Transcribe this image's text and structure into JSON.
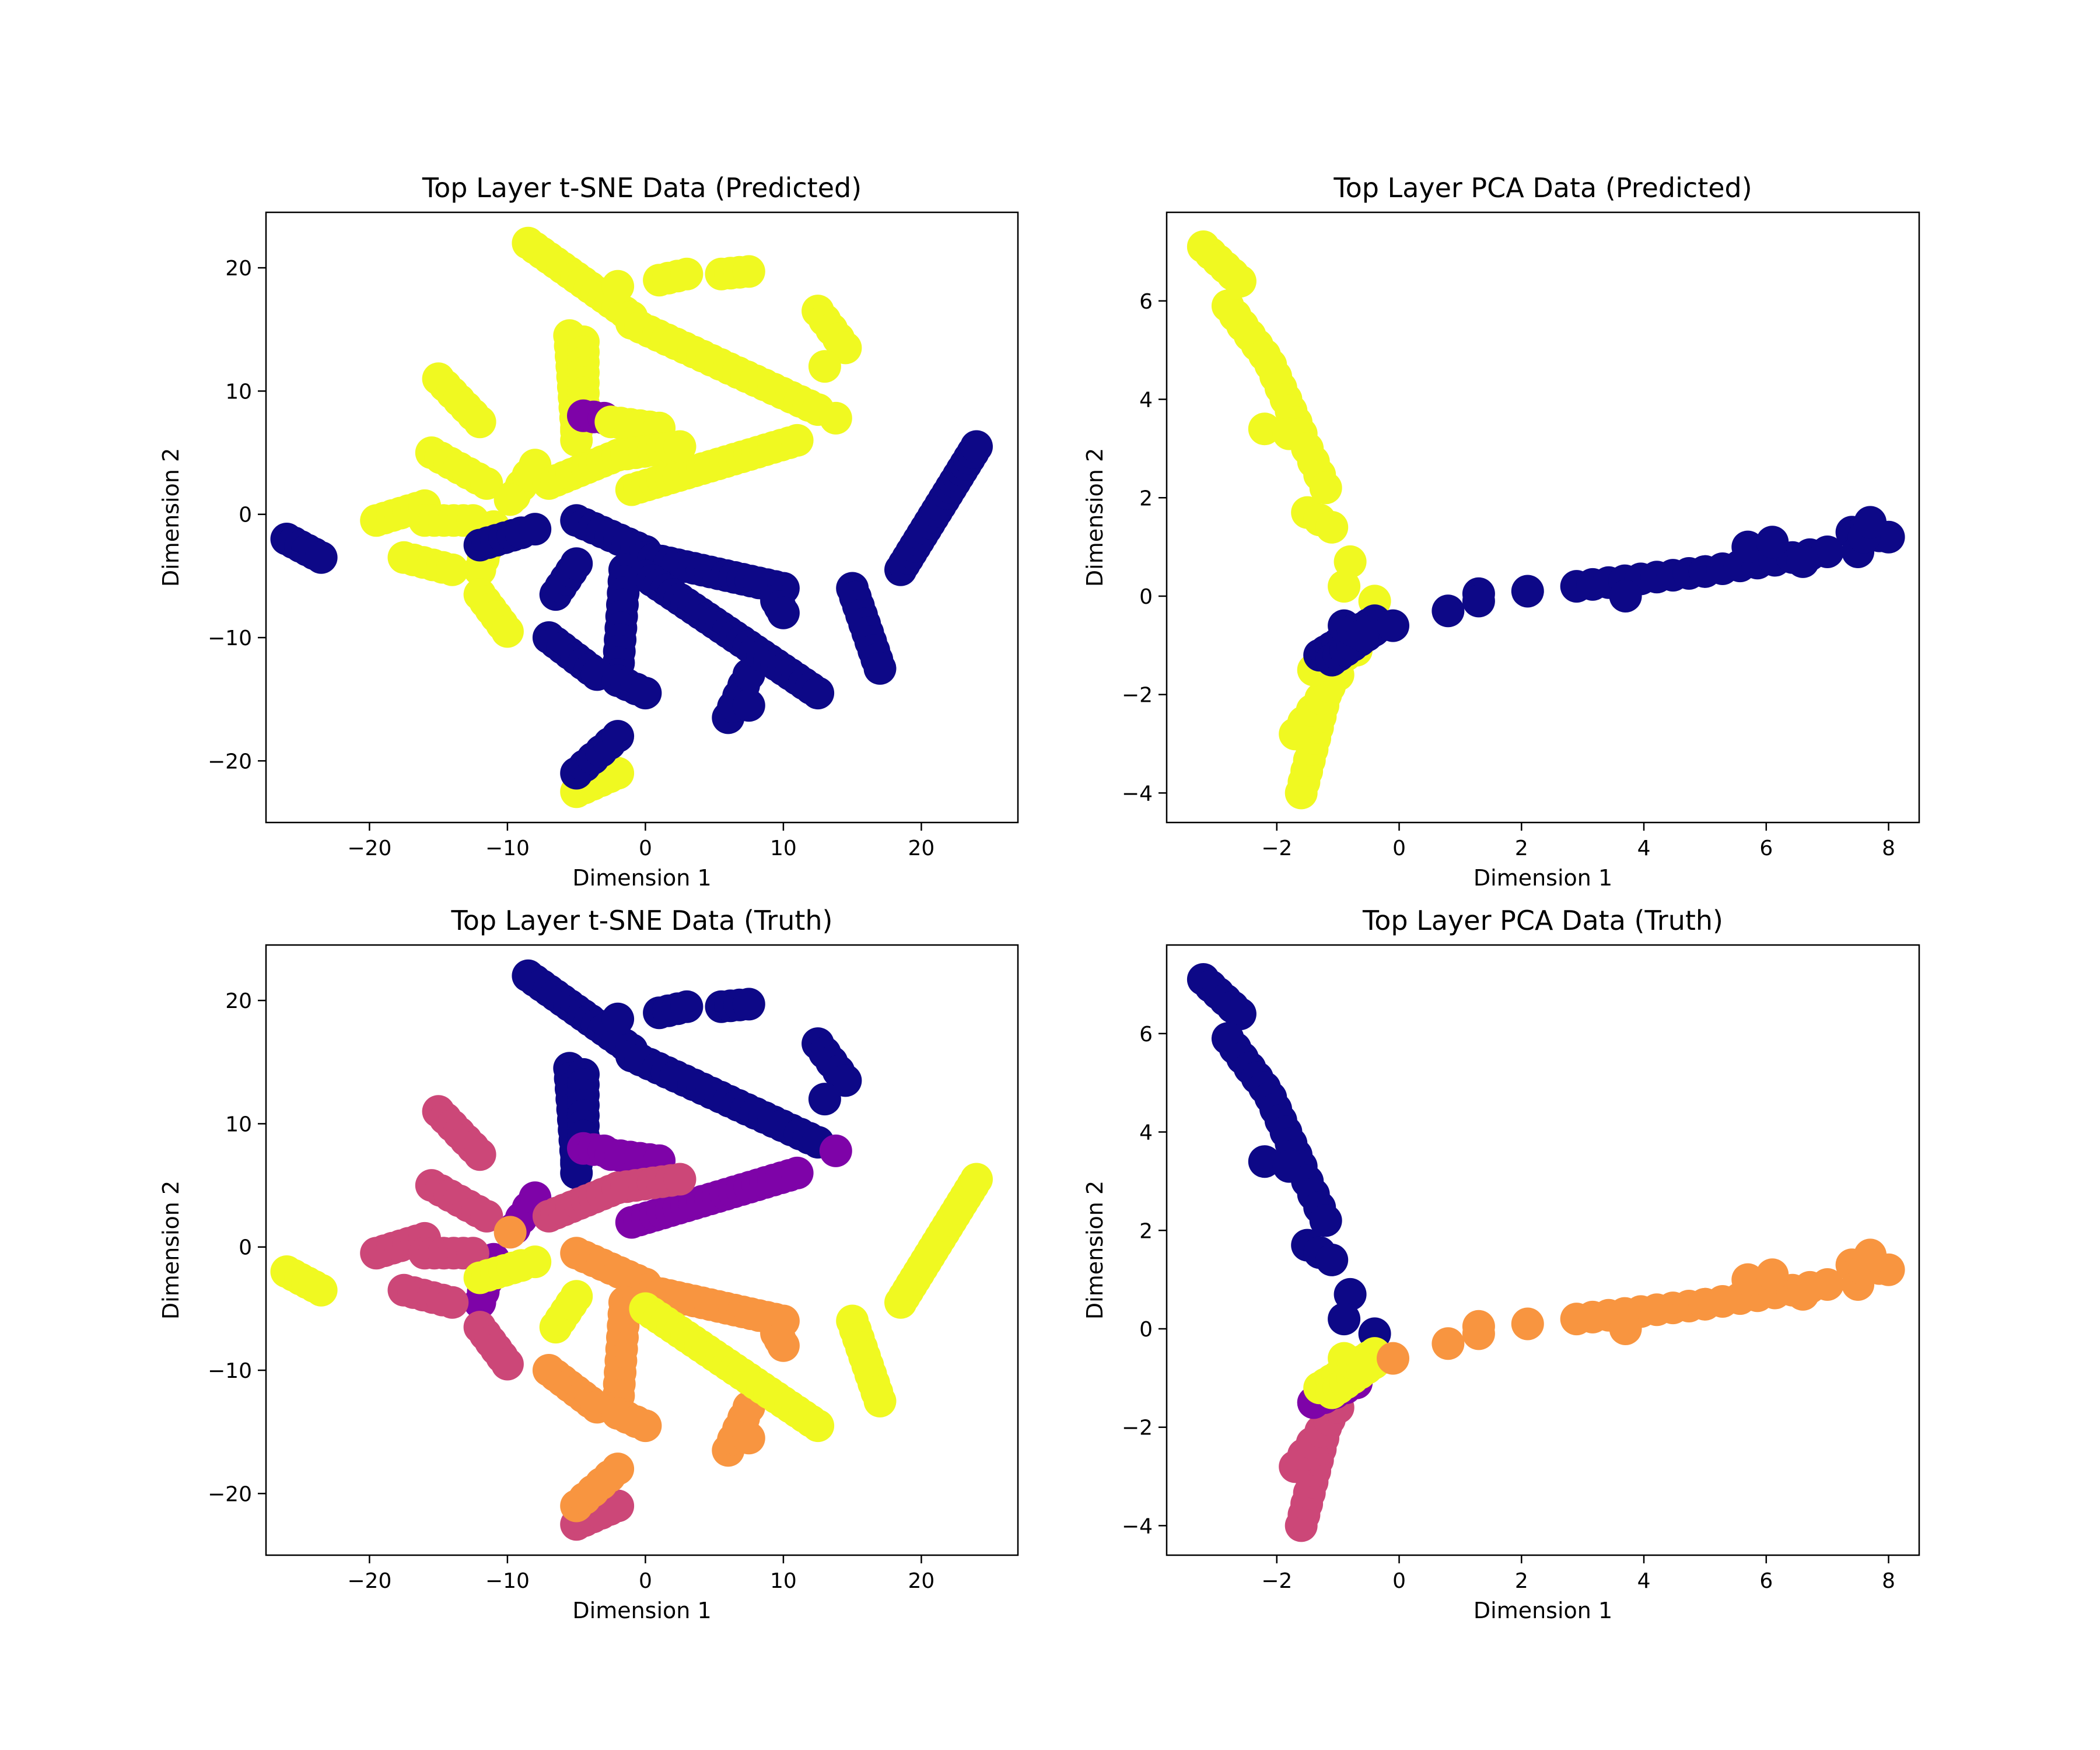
{
  "colors": {
    "class0": "#0d0887",
    "class1": "#7e03a8",
    "class2": "#cc4778",
    "class3": "#f89540",
    "class4": "#f0f921"
  },
  "chart_data": [
    {
      "type": "scatter",
      "title": "Top Layer t-SNE Data (Predicted)",
      "xlabel": "Dimension 1",
      "ylabel": "Dimension 2",
      "xlim": [
        -27.5,
        27
      ],
      "ylim": [
        -25,
        24.5
      ],
      "xticks": [
        -20,
        -10,
        0,
        10,
        20
      ],
      "yticks": [
        -20,
        -10,
        0,
        10,
        20
      ],
      "embedding": "tsne",
      "label_set": "pred"
    },
    {
      "type": "scatter",
      "title": "Top Layer PCA Data (Predicted)",
      "xlabel": "Dimension 1",
      "ylabel": "Dimension 2",
      "xlim": [
        -3.8,
        8.5
      ],
      "ylim": [
        -4.6,
        7.8
      ],
      "xticks": [
        -2,
        0,
        2,
        4,
        6,
        8
      ],
      "yticks": [
        -4,
        -2,
        0,
        2,
        4,
        6
      ],
      "embedding": "pca",
      "label_set": "pred"
    },
    {
      "type": "scatter",
      "title": "Top Layer t-SNE Data (Truth)",
      "xlabel": "Dimension 1",
      "ylabel": "Dimension 2",
      "xlim": [
        -27.5,
        27
      ],
      "ylim": [
        -25,
        24.5
      ],
      "xticks": [
        -20,
        -10,
        0,
        10,
        20
      ],
      "yticks": [
        -20,
        -10,
        0,
        10,
        20
      ],
      "embedding": "tsne",
      "label_set": "truth"
    },
    {
      "type": "scatter",
      "title": "Top Layer PCA Data (Truth)",
      "xlabel": "Dimension 1",
      "ylabel": "Dimension 2",
      "xlim": [
        -3.8,
        8.5
      ],
      "ylim": [
        -4.6,
        7.8
      ],
      "xticks": [
        -2,
        0,
        2,
        4,
        6,
        8
      ],
      "yticks": [
        -4,
        -2,
        0,
        2,
        4,
        6
      ],
      "embedding": "pca",
      "label_set": "truth"
    }
  ],
  "tsne_strands": [
    {
      "from": [
        -8.5,
        22
      ],
      "to": [
        -1,
        16
      ],
      "n": 16,
      "pred": 4,
      "truth": 0
    },
    {
      "from": [
        -2,
        18.5
      ],
      "to": [
        -2,
        18.5
      ],
      "n": 1,
      "pred": 4,
      "truth": 0
    },
    {
      "from": [
        1,
        19
      ],
      "to": [
        3,
        19.5
      ],
      "n": 4,
      "pred": 4,
      "truth": 0
    },
    {
      "from": [
        5.5,
        19.5
      ],
      "to": [
        7.5,
        19.7
      ],
      "n": 4,
      "pred": 4,
      "truth": 0
    },
    {
      "from": [
        -1,
        15.5
      ],
      "to": [
        12.5,
        8.5
      ],
      "n": 22,
      "pred": 4,
      "truth": 0
    },
    {
      "from": [
        12.5,
        16.5
      ],
      "to": [
        14.5,
        13.5
      ],
      "n": 5,
      "pred": 4,
      "truth": 0
    },
    {
      "from": [
        13,
        12
      ],
      "to": [
        13,
        12
      ],
      "n": 1,
      "pred": 4,
      "truth": 0
    },
    {
      "from": [
        -5.5,
        14.5
      ],
      "to": [
        -5,
        7
      ],
      "n": 10,
      "pred": 4,
      "truth": 0
    },
    {
      "from": [
        -4.5,
        14
      ],
      "to": [
        -4.5,
        9
      ],
      "n": 7,
      "pred": 4,
      "truth": 0
    },
    {
      "from": [
        -5,
        7.5
      ],
      "to": [
        -5,
        6
      ],
      "n": 3,
      "pred": 4,
      "truth": 0
    },
    {
      "from": [
        -4.5,
        8
      ],
      "to": [
        -3,
        7.8
      ],
      "n": 3,
      "pred": 1,
      "truth": 1
    },
    {
      "from": [
        -2.5,
        7.5
      ],
      "to": [
        1,
        7
      ],
      "n": 6,
      "pred": 4,
      "truth": 1
    },
    {
      "from": [
        -1,
        2
      ],
      "to": [
        11,
        6
      ],
      "n": 22,
      "pred": 4,
      "truth": 1
    },
    {
      "from": [
        13.8,
        7.8
      ],
      "to": [
        13.8,
        7.8
      ],
      "n": 1,
      "pred": 4,
      "truth": 1
    },
    {
      "from": [
        -9.5,
        1.5
      ],
      "to": [
        -8,
        4
      ],
      "n": 4,
      "pred": 4,
      "truth": 1
    },
    {
      "from": [
        -11,
        -1
      ],
      "to": [
        -12,
        -4.5
      ],
      "n": 5,
      "pred": 4,
      "truth": 1
    },
    {
      "from": [
        -7,
        2.5
      ],
      "to": [
        -2,
        4.8
      ],
      "n": 10,
      "pred": 4,
      "truth": 2
    },
    {
      "from": [
        -2,
        4.8
      ],
      "to": [
        2.5,
        5.5
      ],
      "n": 8,
      "pred": 4,
      "truth": 2
    },
    {
      "from": [
        -15,
        11
      ],
      "to": [
        -12,
        7.5
      ],
      "n": 7,
      "pred": 4,
      "truth": 2
    },
    {
      "from": [
        -15.5,
        5
      ],
      "to": [
        -11.5,
        2.5
      ],
      "n": 7,
      "pred": 4,
      "truth": 2
    },
    {
      "from": [
        -19.5,
        -0.5
      ],
      "to": [
        -16,
        0.7
      ],
      "n": 7,
      "pred": 4,
      "truth": 2
    },
    {
      "from": [
        -16,
        -0.5
      ],
      "to": [
        -12.5,
        -0.5
      ],
      "n": 6,
      "pred": 4,
      "truth": 2
    },
    {
      "from": [
        -17.5,
        -3.5
      ],
      "to": [
        -14,
        -4.5
      ],
      "n": 6,
      "pred": 4,
      "truth": 2
    },
    {
      "from": [
        -12,
        -6.5
      ],
      "to": [
        -10,
        -9.5
      ],
      "n": 6,
      "pred": 4,
      "truth": 2
    },
    {
      "from": [
        -5,
        -22.5
      ],
      "to": [
        -2,
        -21
      ],
      "n": 6,
      "pred": 4,
      "truth": 2
    },
    {
      "from": [
        -9.8,
        1.2
      ],
      "to": [
        -9.8,
        1.2
      ],
      "n": 1,
      "pred": 4,
      "truth": 3
    },
    {
      "from": [
        -5,
        -0.5
      ],
      "to": [
        0,
        -3
      ],
      "n": 9,
      "pred": 0,
      "truth": 3
    },
    {
      "from": [
        0,
        -3.5
      ],
      "to": [
        10,
        -6
      ],
      "n": 18,
      "pred": 0,
      "truth": 3
    },
    {
      "from": [
        9.5,
        -7
      ],
      "to": [
        10,
        -8
      ],
      "n": 3,
      "pred": 0,
      "truth": 3
    },
    {
      "from": [
        -1.5,
        -4.5
      ],
      "to": [
        -2,
        -13
      ],
      "n": 10,
      "pred": 0,
      "truth": 3
    },
    {
      "from": [
        -7,
        -10
      ],
      "to": [
        -3.5,
        -13
      ],
      "n": 8,
      "pred": 0,
      "truth": 3
    },
    {
      "from": [
        -2,
        -13.5
      ],
      "to": [
        0,
        -14.5
      ],
      "n": 4,
      "pred": 0,
      "truth": 3
    },
    {
      "from": [
        -5,
        -21
      ],
      "to": [
        -2,
        -18
      ],
      "n": 6,
      "pred": 0,
      "truth": 3
    },
    {
      "from": [
        6,
        -16.5
      ],
      "to": [
        7.5,
        -13
      ],
      "n": 5,
      "pred": 0,
      "truth": 3
    },
    {
      "from": [
        6.5,
        -15.5
      ],
      "to": [
        7.5,
        -15.5
      ],
      "n": 2,
      "pred": 0,
      "truth": 3
    },
    {
      "from": [
        -26,
        -2
      ],
      "to": [
        -23.5,
        -3.5
      ],
      "n": 6,
      "pred": 0,
      "truth": 4
    },
    {
      "from": [
        -12,
        -2.5
      ],
      "to": [
        -9,
        -1.5
      ],
      "n": 6,
      "pred": 0,
      "truth": 4
    },
    {
      "from": [
        -9,
        -1.5
      ],
      "to": [
        -8,
        -1.2
      ],
      "n": 2,
      "pred": 0,
      "truth": 4
    },
    {
      "from": [
        -6.5,
        -6.5
      ],
      "to": [
        -5,
        -4
      ],
      "n": 5,
      "pred": 0,
      "truth": 4
    },
    {
      "from": [
        0,
        -5
      ],
      "to": [
        12.5,
        -14.5
      ],
      "n": 26,
      "pred": 0,
      "truth": 4
    },
    {
      "from": [
        15,
        -6
      ],
      "to": [
        17,
        -12.5
      ],
      "n": 10,
      "pred": 0,
      "truth": 4
    },
    {
      "from": [
        18.5,
        -4.5
      ],
      "to": [
        24,
        5.5
      ],
      "n": 22,
      "pred": 0,
      "truth": 4
    }
  ],
  "pca_strands": [
    {
      "from": [
        -3.2,
        7.1
      ],
      "to": [
        -2.6,
        6.4
      ],
      "n": 6,
      "pred": 4,
      "truth": 0
    },
    {
      "from": [
        -2.8,
        5.9
      ],
      "to": [
        -2.2,
        4.9
      ],
      "n": 6,
      "pred": 4,
      "truth": 0
    },
    {
      "from": [
        -2.1,
        4.7
      ],
      "to": [
        -1.6,
        3.3
      ],
      "n": 7,
      "pred": 4,
      "truth": 0
    },
    {
      "from": [
        -2.2,
        3.4
      ],
      "to": [
        -1.8,
        3.3
      ],
      "n": 2,
      "pred": 4,
      "truth": 0
    },
    {
      "from": [
        -1.5,
        3.0
      ],
      "to": [
        -1.2,
        2.2
      ],
      "n": 4,
      "pred": 4,
      "truth": 0
    },
    {
      "from": [
        -1.5,
        1.7
      ],
      "to": [
        -1.1,
        1.4
      ],
      "n": 3,
      "pred": 4,
      "truth": 0
    },
    {
      "from": [
        -0.8,
        0.7
      ],
      "to": [
        -0.9,
        0.2
      ],
      "n": 2,
      "pred": 4,
      "truth": 0
    },
    {
      "from": [
        -0.4,
        -0.1
      ],
      "to": [
        -0.4,
        -0.1
      ],
      "n": 1,
      "pred": 4,
      "truth": 0
    },
    {
      "from": [
        -1.6,
        -4.0
      ],
      "to": [
        -1.2,
        -2.0
      ],
      "n": 10,
      "pred": 4,
      "truth": 2
    },
    {
      "from": [
        -1.7,
        -2.8
      ],
      "to": [
        -1.0,
        -1.6
      ],
      "n": 6,
      "pred": 4,
      "truth": 2
    },
    {
      "from": [
        -1.4,
        -1.5
      ],
      "to": [
        -0.7,
        -1.1
      ],
      "n": 5,
      "pred": 4,
      "truth": 1
    },
    {
      "from": [
        -1.3,
        -1.2
      ],
      "to": [
        -0.4,
        -0.5
      ],
      "n": 10,
      "pred": 0,
      "truth": 4
    },
    {
      "from": [
        -1.1,
        -1.3
      ],
      "to": [
        -0.3,
        -0.6
      ],
      "n": 8,
      "pred": 0,
      "truth": 4
    },
    {
      "from": [
        -0.9,
        -0.6
      ],
      "to": [
        -0.6,
        -0.8
      ],
      "n": 3,
      "pred": 0,
      "truth": 4
    },
    {
      "from": [
        -0.1,
        -0.6
      ],
      "to": [
        -0.1,
        -0.6
      ],
      "n": 1,
      "pred": 0,
      "truth": 3
    },
    {
      "from": [
        0.8,
        -0.3
      ],
      "to": [
        1.3,
        0.05
      ],
      "n": 2,
      "pred": 0,
      "truth": 3
    },
    {
      "from": [
        1.3,
        -0.1
      ],
      "to": [
        1.3,
        -0.1
      ],
      "n": 1,
      "pred": 0,
      "truth": 3
    },
    {
      "from": [
        2.1,
        0.1
      ],
      "to": [
        2.1,
        0.1
      ],
      "n": 1,
      "pred": 0,
      "truth": 3
    },
    {
      "from": [
        2.9,
        0.2
      ],
      "to": [
        5.0,
        0.5
      ],
      "n": 9,
      "pred": 0,
      "truth": 3
    },
    {
      "from": [
        3.7,
        0.0
      ],
      "to": [
        3.7,
        0.0
      ],
      "n": 1,
      "pred": 0,
      "truth": 3
    },
    {
      "from": [
        5.0,
        0.5
      ],
      "to": [
        7.0,
        0.9
      ],
      "n": 8,
      "pred": 0,
      "truth": 3
    },
    {
      "from": [
        5.7,
        1.0
      ],
      "to": [
        6.1,
        1.1
      ],
      "n": 2,
      "pred": 0,
      "truth": 3
    },
    {
      "from": [
        6.6,
        0.7
      ],
      "to": [
        6.6,
        0.7
      ],
      "n": 1,
      "pred": 0,
      "truth": 3
    },
    {
      "from": [
        7.4,
        1.3
      ],
      "to": [
        8.0,
        1.2
      ],
      "n": 5,
      "pred": 0,
      "truth": 3
    },
    {
      "from": [
        7.5,
        0.9
      ],
      "to": [
        7.7,
        1.5
      ],
      "n": 3,
      "pred": 0,
      "truth": 3
    }
  ]
}
